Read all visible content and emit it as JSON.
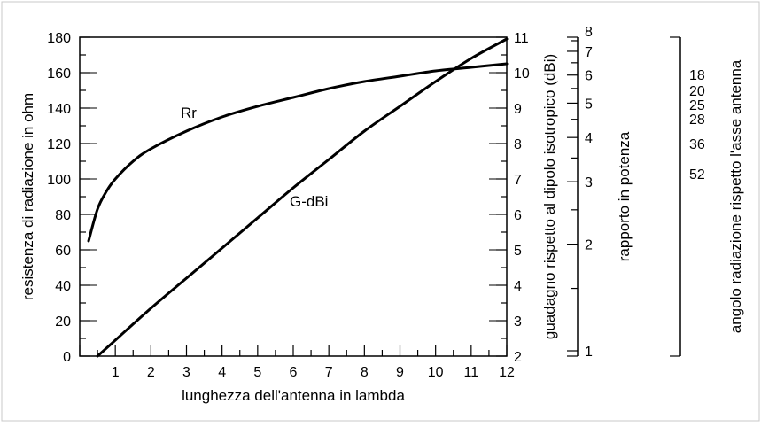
{
  "chart_data": {
    "type": "line",
    "xlabel": "lunghezza dell'antenna in lambda",
    "ylabel_left": "resistenza di radiazione in ohm",
    "ylabel_right": "guadagno rispetto al dipolo isotropico (dBi)",
    "ylabel_ratio": "rapporto in potenza",
    "ylabel_angle": "angolo radiazione rispetto l'asse antenna",
    "xlim": [
      0,
      12
    ],
    "ylim_left": [
      0,
      180
    ],
    "ylim_right": [
      2,
      11
    ],
    "x_ticks": [
      1,
      2,
      3,
      4,
      5,
      6,
      7,
      8,
      9,
      10,
      11,
      12
    ],
    "y_left_ticks": [
      0,
      20,
      40,
      60,
      80,
      100,
      120,
      140,
      160,
      180
    ],
    "y_right_ticks": [
      2,
      3,
      4,
      5,
      6,
      7,
      8,
      9,
      10,
      11
    ],
    "ratio_ticks": [
      1,
      2,
      3,
      4,
      5,
      6,
      7,
      8
    ],
    "angle_labels": [
      {
        "label": "18",
        "gain_dbi": 9.95
      },
      {
        "label": "20",
        "gain_dbi": 9.5
      },
      {
        "label": "25",
        "gain_dbi": 9.1
      },
      {
        "label": "28",
        "gain_dbi": 8.7
      },
      {
        "label": "36",
        "gain_dbi": 8.0
      },
      {
        "label": "52",
        "gain_dbi": 7.15
      }
    ],
    "grid": "horizontal",
    "series": [
      {
        "name": "Rr",
        "axis": "left",
        "x": [
          0.25,
          0.5,
          0.75,
          1,
          1.5,
          2,
          3,
          4,
          5,
          6,
          7,
          8,
          9,
          10,
          11,
          12
        ],
        "y": [
          65,
          83,
          93,
          100,
          110,
          117,
          127,
          135,
          141,
          146,
          151,
          155,
          158,
          161,
          163,
          165
        ]
      },
      {
        "name": "G-dBi",
        "axis": "right",
        "x": [
          0.5,
          1,
          2,
          3,
          4,
          5,
          6,
          7,
          8,
          9,
          10,
          11,
          12
        ],
        "y": [
          2,
          2.45,
          3.35,
          4.2,
          5.05,
          5.9,
          6.75,
          7.55,
          8.35,
          9.05,
          9.75,
          10.4,
          10.95
        ]
      }
    ]
  }
}
